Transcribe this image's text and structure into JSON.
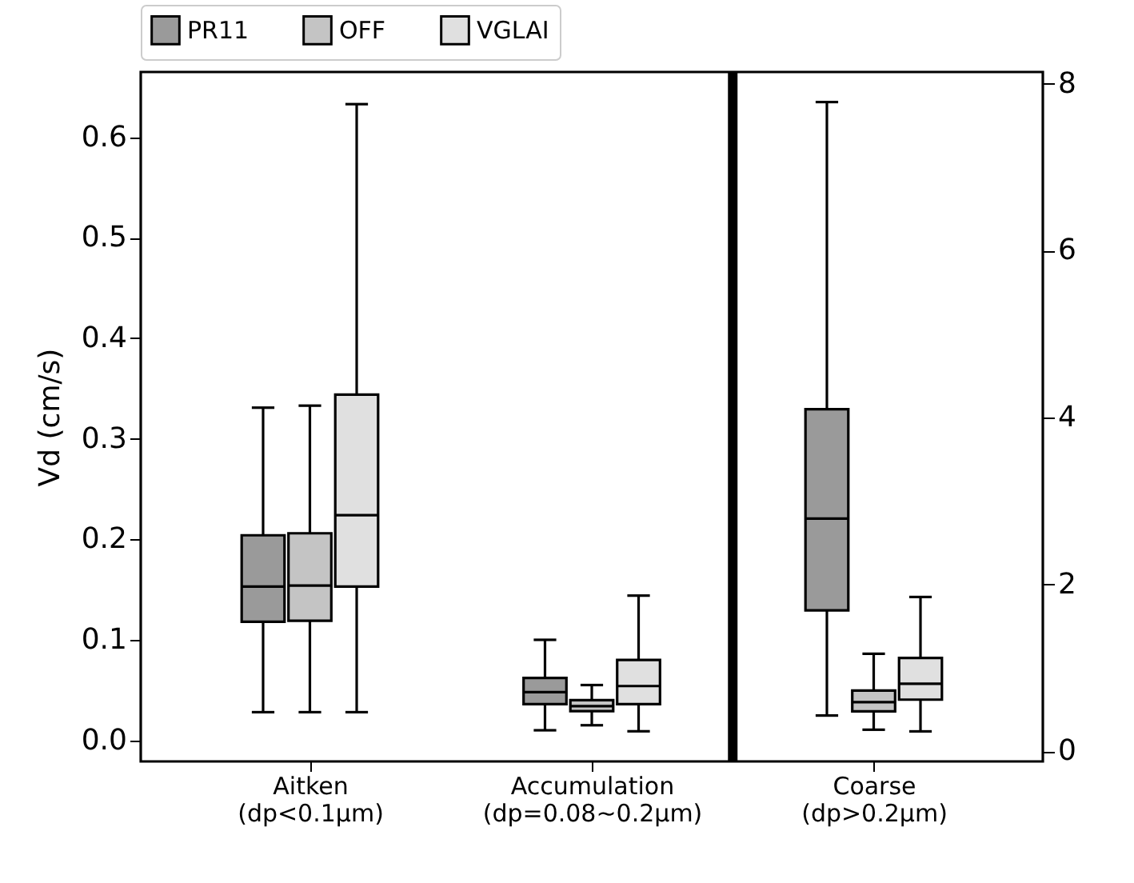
{
  "chart_data": {
    "type": "box",
    "ylabel": "Vd (cm/s)",
    "categories": [
      "Aitken\n(dp<0.1μm)",
      "Accumulation\n(dp=0.08~0.2μm)",
      "Coarse\n(dp>0.2μm)"
    ],
    "ylim": [
      -0.021,
      0.665
    ],
    "yticks": [
      {
        "value": 0,
        "label": "0.0"
      },
      0.1,
      0.2,
      0.3,
      0.4,
      0.5,
      0.6
    ],
    "y2lim": [
      -0.12,
      8.14
    ],
    "y2ticks": [
      0,
      2,
      4,
      6,
      8
    ],
    "legend": "top",
    "grid": false,
    "series": [
      {
        "name": "PR11",
        "color": "#9a9a9a",
        "boxes": [
          {
            "low": 0.028,
            "q1": 0.118,
            "median": 0.153,
            "q3": 0.204,
            "high": 0.331
          },
          {
            "low": 0.01,
            "q1": 0.036,
            "median": 0.048,
            "q3": 0.062,
            "high": 0.1
          },
          null
        ]
      },
      {
        "name": "OFF",
        "color": "#c4c4c4",
        "boxes": [
          {
            "low": 0.028,
            "q1": 0.119,
            "median": 0.154,
            "q3": 0.206,
            "high": 0.333
          },
          {
            "low": 0.015,
            "q1": 0.029,
            "median": 0.034,
            "q3": 0.04,
            "high": 0.055
          },
          null
        ]
      },
      {
        "name": "VGLAI",
        "color": "#e0e0e0",
        "boxes": [
          {
            "low": 0.028,
            "q1": 0.153,
            "median": 0.224,
            "q3": 0.344,
            "high": 0.633
          },
          {
            "low": 0.009,
            "q1": 0.036,
            "median": 0.054,
            "q3": 0.08,
            "high": 0.144
          },
          null
        ]
      },
      {
        "color": "#9a9a9a",
        "axis": "y2",
        "boxes": [
          null,
          null,
          {
            "low": 0.43,
            "q1": 1.69,
            "median": 2.79,
            "q3": 4.1,
            "high": 7.78
          }
        ]
      },
      {
        "color": "#c4c4c4",
        "axis": "y2",
        "boxes": [
          null,
          null,
          {
            "low": 0.26,
            "q1": 0.48,
            "median": 0.59,
            "q3": 0.73,
            "high": 1.17
          }
        ]
      },
      {
        "color": "#e0e0e0",
        "axis": "y2",
        "boxes": [
          null,
          null,
          {
            "low": 0.24,
            "q1": 0.62,
            "median": 0.81,
            "q3": 1.12,
            "high": 1.85
          }
        ]
      }
    ]
  }
}
